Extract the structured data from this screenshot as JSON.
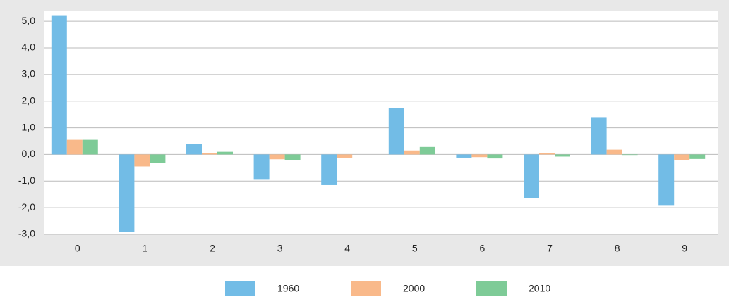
{
  "chart_data": {
    "type": "bar",
    "categories": [
      "0",
      "1",
      "2",
      "3",
      "4",
      "5",
      "6",
      "7",
      "8",
      "9"
    ],
    "series": [
      {
        "name": "1960",
        "color": "#72bce6",
        "values": [
          5.2,
          -2.9,
          0.4,
          -0.95,
          -1.15,
          1.75,
          -0.12,
          -1.65,
          1.4,
          -1.9
        ]
      },
      {
        "name": "2000",
        "color": "#f9b98a",
        "values": [
          0.55,
          -0.45,
          0.05,
          -0.18,
          -0.12,
          0.15,
          -0.1,
          0.04,
          0.18,
          -0.2
        ]
      },
      {
        "name": "2010",
        "color": "#7ecb97",
        "values": [
          0.55,
          -0.32,
          0.1,
          -0.22,
          0,
          0.28,
          -0.15,
          -0.08,
          -0.02,
          -0.17
        ]
      }
    ],
    "ylim": [
      -3,
      5.4
    ],
    "yticks": [
      {
        "value": -3,
        "label": "-3,0"
      },
      {
        "value": -2,
        "label": "-2,0"
      },
      {
        "value": -1,
        "label": "-1,0"
      },
      {
        "value": 0,
        "label": "0,0"
      },
      {
        "value": 1,
        "label": "1,0"
      },
      {
        "value": 2,
        "label": "2,0"
      },
      {
        "value": 3,
        "label": "3,0"
      },
      {
        "value": 4,
        "label": "4,0"
      },
      {
        "value": 5,
        "label": "5,0"
      }
    ],
    "grid": true,
    "legend": "bottom"
  }
}
